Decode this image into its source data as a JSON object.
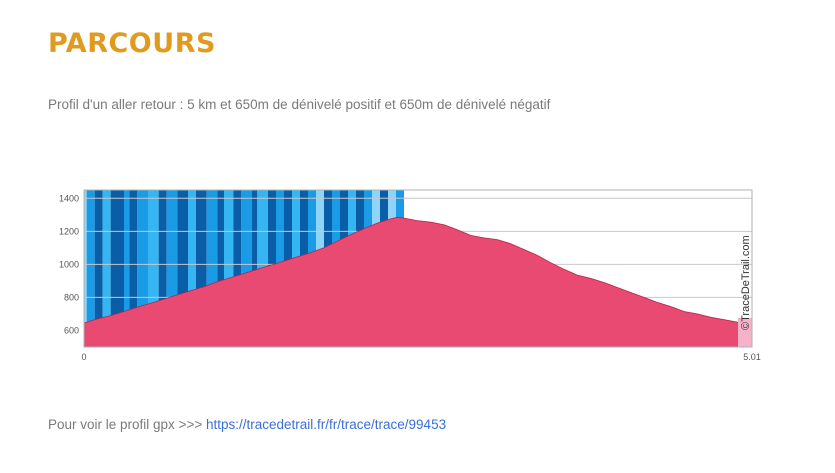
{
  "page": {
    "title": "PARCOURS",
    "subtitle": "Profil d'un aller retour : 5 km et 650m de dénivelé positif et 650m de dénivelé négatif",
    "footer_prefix": "Pour voir le profil gpx >>> ",
    "footer_link": "https://tracedetrail.fr/fr/trace/trace/99453"
  },
  "colors": {
    "title": "#e09a1e",
    "area": "#e84a72",
    "area_stroke": "#b8244e",
    "grid": "#c8c8c8",
    "stripes": [
      "#0a5ea8",
      "#1a9be6",
      "#35b5f2",
      "#8ed4f7"
    ]
  },
  "chart_data": {
    "type": "area",
    "title": "",
    "xlabel": "",
    "ylabel": "",
    "xlim": [
      0,
      5.01
    ],
    "ylim": [
      500,
      1450
    ],
    "yticks": [
      600,
      800,
      1000,
      1200,
      1400
    ],
    "xtick_labels": [
      "0",
      "5.01"
    ],
    "grid": true,
    "watermark": "©TraceDeTrail.com",
    "series": [
      {
        "x": [
          0,
          0.1,
          0.2,
          0.3,
          0.4,
          0.5,
          0.6,
          0.7,
          0.8,
          0.9,
          1.0,
          1.1,
          1.2,
          1.3,
          1.4,
          1.5,
          1.6,
          1.7,
          1.8,
          1.9,
          2.0,
          2.1,
          2.2,
          2.3,
          2.35,
          2.4,
          2.5,
          2.6,
          2.7,
          2.8,
          2.9,
          3.0,
          3.1,
          3.2,
          3.3,
          3.4,
          3.5,
          3.6,
          3.7,
          3.8,
          3.9,
          4.0,
          4.1,
          4.2,
          4.3,
          4.4,
          4.5,
          4.6,
          4.7,
          4.8,
          4.9,
          5.01
        ],
        "y": [
          645,
          670,
          690,
          715,
          740,
          765,
          790,
          815,
          840,
          865,
          895,
          920,
          945,
          970,
          995,
          1020,
          1045,
          1070,
          1100,
          1140,
          1180,
          1215,
          1250,
          1275,
          1285,
          1280,
          1265,
          1255,
          1240,
          1210,
          1175,
          1160,
          1150,
          1125,
          1090,
          1055,
          1010,
          970,
          935,
          915,
          890,
          860,
          830,
          800,
          770,
          745,
          715,
          700,
          680,
          665,
          650,
          640
        ]
      }
    ],
    "stripes": [
      {
        "x0": 0.0,
        "x1": 0.02,
        "c": 3
      },
      {
        "x0": 0.02,
        "x1": 0.08,
        "c": 1
      },
      {
        "x0": 0.08,
        "x1": 0.14,
        "c": 0
      },
      {
        "x0": 0.14,
        "x1": 0.2,
        "c": 2
      },
      {
        "x0": 0.2,
        "x1": 0.3,
        "c": 0
      },
      {
        "x0": 0.3,
        "x1": 0.34,
        "c": 1
      },
      {
        "x0": 0.34,
        "x1": 0.4,
        "c": 0
      },
      {
        "x0": 0.4,
        "x1": 0.48,
        "c": 1
      },
      {
        "x0": 0.48,
        "x1": 0.56,
        "c": 2
      },
      {
        "x0": 0.56,
        "x1": 0.62,
        "c": 0
      },
      {
        "x0": 0.62,
        "x1": 0.7,
        "c": 1
      },
      {
        "x0": 0.7,
        "x1": 0.78,
        "c": 0
      },
      {
        "x0": 0.78,
        "x1": 0.84,
        "c": 2
      },
      {
        "x0": 0.84,
        "x1": 0.92,
        "c": 0
      },
      {
        "x0": 0.92,
        "x1": 1.0,
        "c": 1
      },
      {
        "x0": 1.0,
        "x1": 1.05,
        "c": 0
      },
      {
        "x0": 1.05,
        "x1": 1.12,
        "c": 2
      },
      {
        "x0": 1.12,
        "x1": 1.18,
        "c": 0
      },
      {
        "x0": 1.18,
        "x1": 1.26,
        "c": 1
      },
      {
        "x0": 1.26,
        "x1": 1.3,
        "c": 0
      },
      {
        "x0": 1.3,
        "x1": 1.38,
        "c": 2
      },
      {
        "x0": 1.38,
        "x1": 1.44,
        "c": 0
      },
      {
        "x0": 1.44,
        "x1": 1.5,
        "c": 1
      },
      {
        "x0": 1.5,
        "x1": 1.56,
        "c": 0
      },
      {
        "x0": 1.56,
        "x1": 1.62,
        "c": 2
      },
      {
        "x0": 1.62,
        "x1": 1.68,
        "c": 0
      },
      {
        "x0": 1.68,
        "x1": 1.74,
        "c": 1
      },
      {
        "x0": 1.74,
        "x1": 1.8,
        "c": 3
      },
      {
        "x0": 1.8,
        "x1": 1.86,
        "c": 0
      },
      {
        "x0": 1.86,
        "x1": 1.92,
        "c": 1
      },
      {
        "x0": 1.92,
        "x1": 1.98,
        "c": 0
      },
      {
        "x0": 1.98,
        "x1": 2.04,
        "c": 2
      },
      {
        "x0": 2.04,
        "x1": 2.1,
        "c": 0
      },
      {
        "x0": 2.1,
        "x1": 2.16,
        "c": 1
      },
      {
        "x0": 2.16,
        "x1": 2.22,
        "c": 3
      },
      {
        "x0": 2.22,
        "x1": 2.28,
        "c": 0
      },
      {
        "x0": 2.28,
        "x1": 2.34,
        "c": 3
      },
      {
        "x0": 2.34,
        "x1": 2.4,
        "c": 1
      }
    ]
  }
}
